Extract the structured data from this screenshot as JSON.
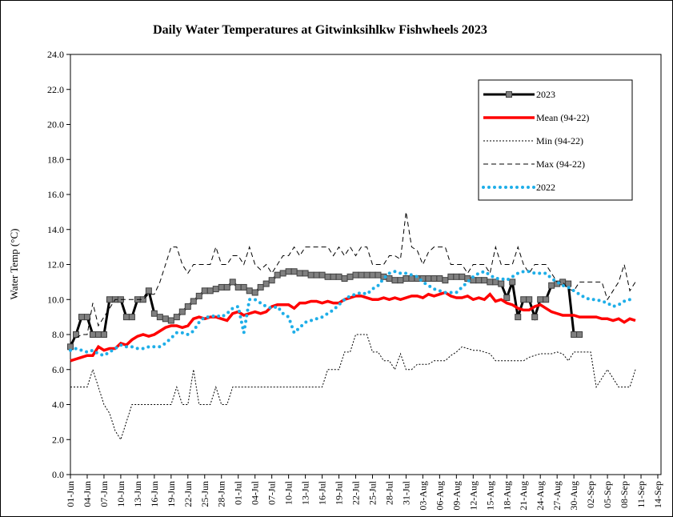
{
  "chart_data": {
    "type": "line",
    "title": "Daily Water Temperatures at Gitwinksihlkw Fishwheels 2023",
    "y_label": "Water Temp (°C)",
    "ylim": [
      0,
      24
    ],
    "yticks": [
      {
        "value": 0,
        "label": "0.0"
      },
      {
        "value": 2,
        "label": "2.0"
      },
      {
        "value": 4,
        "label": "4.0"
      },
      {
        "value": 6,
        "label": "6.0"
      },
      {
        "value": 8,
        "label": "8.0"
      },
      {
        "value": 10,
        "label": "10.0"
      },
      {
        "value": 12,
        "label": "12.0"
      },
      {
        "value": 14,
        "label": "14.0"
      },
      {
        "value": 16,
        "label": "16.0"
      },
      {
        "value": 18,
        "label": "18.0"
      },
      {
        "value": 20,
        "label": "20.0"
      },
      {
        "value": 22,
        "label": "22.0"
      },
      {
        "value": 24,
        "label": "24.0"
      }
    ],
    "categories": [
      "01-Jun",
      null,
      null,
      "04-Jun",
      null,
      null,
      "07-Jun",
      null,
      null,
      "10-Jun",
      null,
      null,
      "13-Jun",
      null,
      null,
      "16-Jun",
      null,
      null,
      "19-Jun",
      null,
      null,
      "22-Jun",
      null,
      null,
      "25-Jun",
      null,
      null,
      "28-Jun",
      null,
      null,
      "01-Jul",
      null,
      null,
      "04-Jul",
      null,
      null,
      "07-Jul",
      null,
      null,
      "10-Jul",
      null,
      null,
      "13-Jul",
      null,
      null,
      "16-Jul",
      null,
      null,
      "19-Jul",
      null,
      null,
      "22-Jul",
      null,
      null,
      "25-Jul",
      null,
      null,
      "28-Jul",
      null,
      null,
      "31-Jul",
      null,
      null,
      "03-Aug",
      null,
      null,
      "06-Aug",
      null,
      null,
      "09-Aug",
      null,
      null,
      "12-Aug",
      null,
      null,
      "15-Aug",
      null,
      null,
      "18-Aug",
      null,
      null,
      "21-Aug",
      null,
      null,
      "24-Aug",
      null,
      null,
      "27-Aug",
      null,
      null,
      "30-Aug",
      null,
      null,
      "02-Sep",
      null,
      null,
      "05-Sep",
      null,
      null,
      "08-Sep",
      null,
      null,
      "11-Sep",
      null,
      null,
      "14-Sep"
    ],
    "legend_position": "upper right",
    "series": [
      {
        "name": "2023",
        "color": "#000000",
        "marker_color": "#808080",
        "style": "line-markers",
        "values": [
          7.3,
          8,
          9,
          9,
          8,
          8,
          8,
          10,
          10,
          10,
          9,
          9,
          10,
          10,
          10.5,
          9.2,
          9.0,
          8.9,
          8.8,
          9.0,
          9.3,
          9.6,
          9.9,
          10.2,
          10.5,
          10.5,
          10.6,
          10.7,
          10.7,
          11.0,
          10.7,
          10.7,
          10.5,
          10.4,
          10.7,
          10.9,
          11.1,
          11.4,
          11.5,
          11.6,
          11.6,
          11.5,
          11.5,
          11.4,
          11.4,
          11.4,
          11.3,
          11.3,
          11.3,
          11.2,
          11.3,
          11.4,
          11.4,
          11.4,
          11.4,
          11.4,
          11.3,
          11.2,
          11.1,
          11.1,
          11.2,
          11.2,
          11.2,
          11.2,
          11.2,
          11.2,
          11.2,
          11.1,
          11.3,
          11.3,
          11.3,
          11.2,
          11.1,
          11.1,
          11.1,
          11.0,
          11.0,
          10.9,
          10.1,
          11.0,
          9.0,
          10.0,
          10.0,
          9.0,
          10.0,
          10.0,
          10.8,
          10.9,
          11.0,
          10.9,
          8.0,
          8.0,
          null,
          null,
          null,
          null,
          null,
          null,
          null,
          null,
          null,
          null,
          null,
          null,
          null,
          null
        ]
      },
      {
        "name": "Mean (94-22)",
        "color": "#ff0000",
        "style": "thick",
        "values": [
          6.5,
          6.6,
          6.7,
          6.8,
          6.8,
          7.3,
          7.1,
          7.2,
          7.2,
          7.5,
          7.4,
          7.7,
          7.9,
          8.0,
          7.9,
          8.0,
          8.2,
          8.4,
          8.5,
          8.5,
          8.4,
          8.5,
          8.9,
          9.0,
          8.9,
          9.0,
          9.0,
          8.9,
          8.8,
          9.2,
          9.3,
          9.1,
          9.2,
          9.3,
          9.2,
          9.3,
          9.6,
          9.7,
          9.7,
          9.7,
          9.5,
          9.8,
          9.8,
          9.9,
          9.9,
          9.8,
          9.9,
          9.8,
          9.8,
          10.0,
          10.1,
          10.2,
          10.2,
          10.1,
          10.0,
          10.0,
          10.1,
          10.0,
          10.1,
          10.0,
          10.1,
          10.2,
          10.2,
          10.1,
          10.3,
          10.2,
          10.3,
          10.4,
          10.2,
          10.1,
          10.1,
          10.2,
          10.0,
          10.1,
          10.0,
          10.3,
          9.9,
          10.0,
          9.8,
          9.7,
          9.5,
          9.4,
          9.4,
          9.6,
          9.7,
          9.5,
          9.3,
          9.2,
          9.1,
          9.1,
          9.1,
          9.0,
          9.0,
          9.0,
          9.0,
          8.9,
          8.9,
          8.8,
          8.9,
          8.7,
          8.9,
          8.8,
          null,
          null,
          null,
          null
        ]
      },
      {
        "name": "Min (94-22)",
        "color": "#000000",
        "style": "dotted",
        "values": [
          5,
          5,
          5,
          5,
          6,
          5,
          4,
          3.5,
          2.5,
          2,
          3,
          4,
          4,
          4,
          4,
          4,
          4,
          4,
          4,
          5,
          4,
          4,
          6,
          4,
          4,
          4,
          5,
          4,
          4,
          5,
          5,
          5,
          5,
          5,
          5,
          5,
          5,
          5,
          5,
          5,
          5,
          5,
          5,
          5,
          5,
          5,
          6,
          6,
          6,
          7,
          7,
          8,
          8,
          8,
          7,
          7,
          6.5,
          6.5,
          6,
          6.9,
          6,
          6,
          6.3,
          6.3,
          6.3,
          6.5,
          6.5,
          6.5,
          6.8,
          7,
          7.3,
          7.2,
          7.1,
          7.1,
          7,
          6.9,
          6.5,
          6.5,
          6.5,
          6.5,
          6.5,
          6.5,
          6.7,
          6.8,
          6.9,
          6.9,
          6.9,
          7,
          6.9,
          6.5,
          7,
          7,
          7,
          7,
          5,
          5.5,
          6,
          5.5,
          5,
          5,
          5,
          6,
          null,
          null,
          null,
          null
        ]
      },
      {
        "name": "Max (94-22)",
        "color": "#000000",
        "style": "dashed",
        "values": [
          7.5,
          7.8,
          8,
          8,
          9.8,
          8.5,
          9,
          9.5,
          10,
          10,
          10,
          10,
          10,
          10,
          10.3,
          10.3,
          11,
          12,
          13,
          13,
          12,
          11.5,
          12,
          12,
          12,
          12,
          13,
          12,
          12,
          12.5,
          12.5,
          12,
          13,
          12,
          11.7,
          12,
          11.5,
          12,
          12.5,
          12.5,
          13,
          12.5,
          13,
          13,
          13,
          13,
          13,
          12.5,
          13,
          12.5,
          13,
          12.5,
          13,
          13,
          12,
          12,
          12,
          12.5,
          12.5,
          12.3,
          15,
          13,
          12.8,
          12,
          12.7,
          13,
          13,
          13,
          12,
          12,
          12,
          11.5,
          12,
          12,
          12,
          11.5,
          13,
          12,
          12,
          12,
          13,
          12,
          11.5,
          12,
          12,
          12,
          11.5,
          11,
          11,
          10.6,
          10.5,
          11,
          11,
          11,
          11,
          11,
          10,
          10.5,
          11,
          12,
          10.5,
          11,
          null,
          null,
          null,
          null
        ]
      },
      {
        "name": "2022",
        "color": "#1eaee8",
        "style": "dots",
        "values": [
          7.1,
          7.2,
          7.1,
          7.0,
          7.1,
          6.9,
          6.8,
          7.0,
          7.2,
          7.4,
          7.3,
          7.3,
          7.2,
          7.2,
          7.3,
          7.3,
          7.3,
          7.5,
          7.8,
          8.1,
          8.1,
          8.0,
          8.2,
          8.7,
          9.0,
          9.0,
          9.1,
          9.0,
          9.2,
          9.5,
          9.6,
          8.1,
          10.0,
          10.0,
          9.8,
          9.6,
          9.5,
          9.6,
          9.2,
          9.0,
          8.1,
          8.4,
          8.7,
          8.8,
          8.9,
          9.0,
          9.2,
          9.4,
          9.7,
          10.0,
          10.2,
          10.3,
          10.4,
          10.3,
          10.6,
          10.8,
          11.2,
          11.5,
          11.6,
          11.5,
          11.5,
          11.4,
          11.3,
          11.0,
          10.8,
          10.6,
          10.5,
          10.4,
          10.4,
          10.4,
          10.7,
          11.0,
          11.3,
          11.5,
          11.6,
          11.4,
          11.2,
          11.2,
          11.1,
          11.3,
          11.5,
          11.6,
          11.6,
          11.5,
          11.5,
          11.5,
          11.2,
          11.0,
          10.8,
          10.7,
          10.5,
          10.3,
          10.1,
          10.0,
          10.0,
          9.9,
          9.8,
          9.6,
          9.7,
          9.9,
          10.0,
          null,
          null,
          null,
          null,
          null
        ]
      }
    ]
  }
}
